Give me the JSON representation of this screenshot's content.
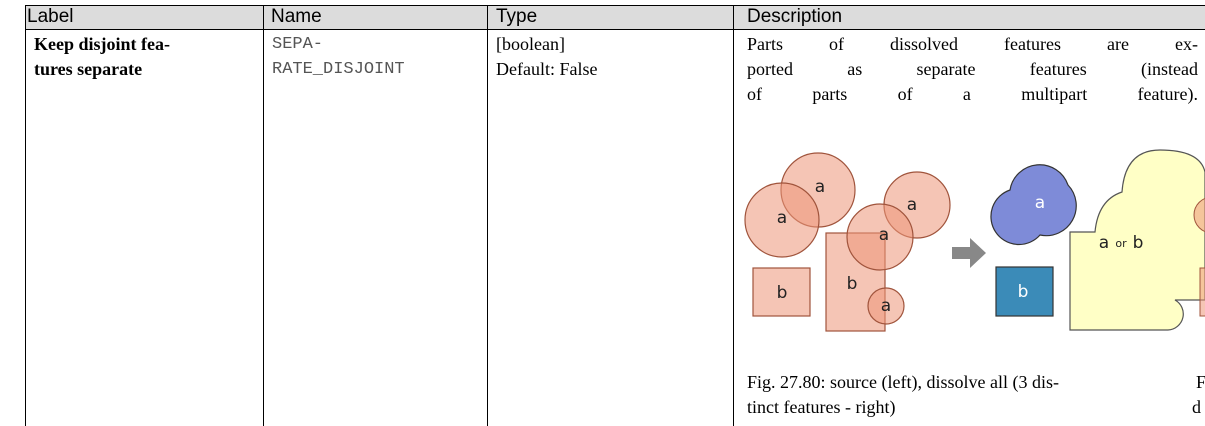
{
  "table": {
    "header": [
      "Label",
      "Name",
      "Type",
      "Description"
    ],
    "row": {
      "label": [
        "Keep disjoint fea-",
        "tures separate"
      ],
      "name": [
        "SEPA-",
        "RATE_DISJOINT"
      ],
      "type": [
        "[boolean]",
        "Default: False"
      ],
      "description": [
        "Parts of dissolved features are ex-",
        "ported as separate features (instead",
        "of parts of a multipart feature)."
      ],
      "figure": {
        "source_labels": [
          "a",
          "a",
          "a",
          "a",
          "b",
          "b",
          "a"
        ],
        "result_labels": [
          "a",
          "b"
        ],
        "merged_label": {
          "first": "a",
          "middle": "or",
          "last": "b"
        }
      },
      "caption": [
        "Fig. 27.80: source (left), dissolve all (3 dis-",
        "tinct features - right)"
      ],
      "overflow": [
        "F",
        "d"
      ]
    }
  }
}
